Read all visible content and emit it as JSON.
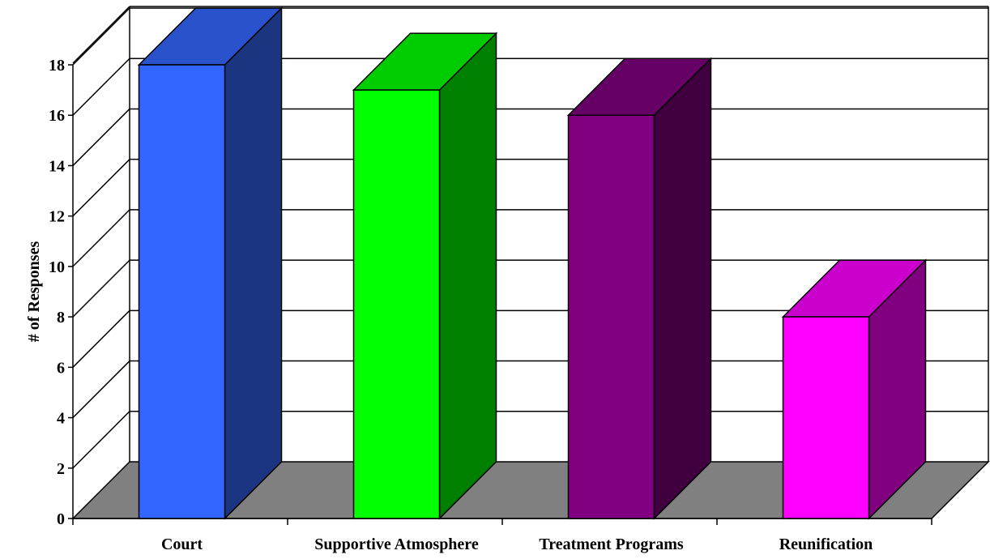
{
  "chart_data": {
    "type": "bar",
    "style": "3d",
    "title": "",
    "xlabel": "",
    "ylabel": "# of Responses",
    "categories": [
      "Court",
      "Supportive Atmosphere",
      "Treatment Programs",
      "Reunification"
    ],
    "values": [
      18,
      17,
      16,
      8
    ],
    "ylim": [
      0,
      18
    ],
    "yticks": [
      "0",
      "2",
      "4",
      "6",
      "8",
      "10",
      "12",
      "14",
      "16",
      "18"
    ],
    "grid": true,
    "legend": "none",
    "colors": {
      "front": [
        "#3366ff",
        "#00ff00",
        "#800080",
        "#ff00ff"
      ],
      "side": [
        "#1c3580",
        "#008000",
        "#400040",
        "#800080"
      ],
      "top": [
        "#2952cc",
        "#00cc00",
        "#660066",
        "#cc00cc"
      ],
      "floor": "#808080",
      "gridline": "#000000"
    }
  }
}
